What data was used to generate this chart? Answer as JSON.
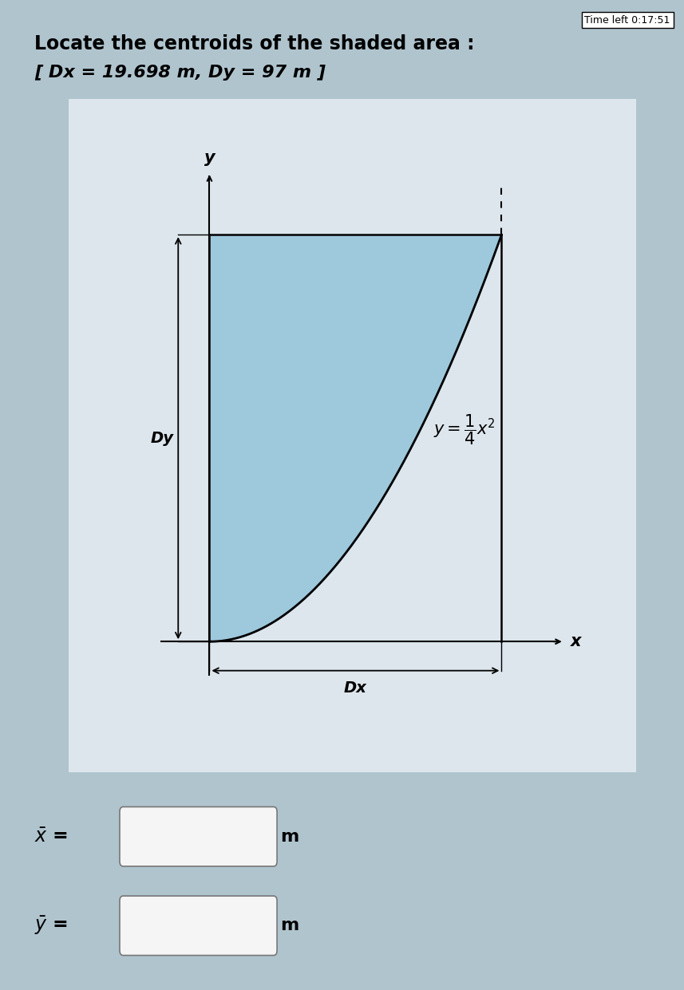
{
  "title": "Locate the centroids of the shaded area :",
  "subtitle": "[ Dx = 19.698 m, Dy = 97 m ]",
  "bg_color": "#b0c4ce",
  "plot_bg_color": "#dde6ec",
  "shaded_color": "#9ec8dc",
  "x_max": 14,
  "y_max": 49,
  "title_fontsize": 17,
  "subtitle_fontsize": 16,
  "input_box_color": "#f5f5f5",
  "timer_text": "Time left 0:17:51",
  "curve_label": "$y = \\dfrac{1}{4}x^2$"
}
